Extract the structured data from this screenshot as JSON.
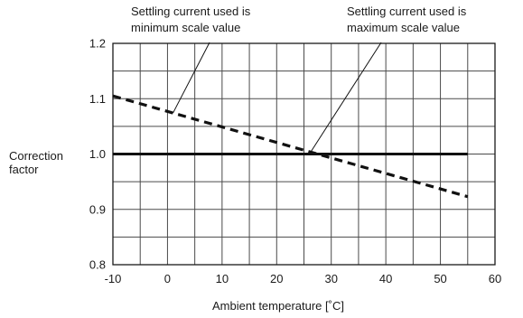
{
  "chart_data": {
    "type": "line",
    "xlabel": "Ambient temperature [˚C]",
    "ylabel_lines": [
      "Correction",
      "factor"
    ],
    "xlim": [
      -10,
      60
    ],
    "ylim": [
      0.8,
      1.2
    ],
    "x_ticks": [
      -10,
      0,
      10,
      20,
      30,
      40,
      50,
      60
    ],
    "x_tick_labels": [
      "-10",
      "0",
      "10",
      "20",
      "30",
      "40",
      "50",
      "60"
    ],
    "y_ticks": [
      0.8,
      0.9,
      1.0,
      1.1,
      1.2
    ],
    "y_tick_labels": [
      "0.8",
      "0.9",
      "1.0",
      "1.1",
      "1.2"
    ],
    "x_grid_step": 5,
    "y_grid_step": 0.05,
    "grid": true,
    "series": [
      {
        "style": "dashed",
        "x": [
          -10,
          55
        ],
        "y": [
          1.105,
          0.923
        ]
      },
      {
        "style": "solid",
        "x": [
          -10,
          55
        ],
        "y": [
          1.0,
          1.0
        ]
      }
    ],
    "annotations": [
      {
        "lines": [
          "Settling current used is",
          "minimum scale value"
        ],
        "points_to": {
          "x": 1,
          "y": 1.074
        }
      },
      {
        "lines": [
          "Settling current used is",
          "maximum scale value"
        ],
        "points_to": {
          "x": 26,
          "y": 1.0
        }
      }
    ]
  }
}
